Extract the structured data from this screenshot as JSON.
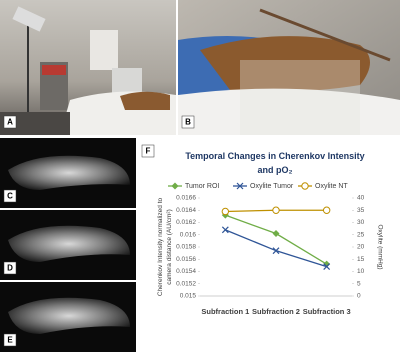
{
  "panels": [
    "A",
    "B",
    "C",
    "D",
    "E",
    "F"
  ],
  "chart_data": {
    "type": "line",
    "title": "Temporal Changes in Cherenkov Intensity and pO₂",
    "y_label": "Cherenkov Intensity normalized to camera distance (AU/cm²)",
    "y2_label": "Oxylite (mmHg)",
    "categories": [
      "Subfraction 1",
      "Subfraction 2",
      "Subfraction 3"
    ],
    "ylim": [
      0.015,
      0.0166
    ],
    "yticks": [
      0.015,
      0.0152,
      0.0154,
      0.0156,
      0.0158,
      0.016,
      0.0162,
      0.0164,
      0.0166
    ],
    "y2lim": [
      0,
      40
    ],
    "y2ticks": [
      0,
      5,
      10,
      15,
      20,
      25,
      30,
      35,
      40
    ],
    "series": [
      {
        "name": "Tumor ROI",
        "color": "#70ad47",
        "marker": "diamond",
        "values": [
          0.01632,
          0.01602,
          0.01552
        ]
      },
      {
        "name": "Oxylite Tumor",
        "color": "#2f5597",
        "marker": "x",
        "axis": "y2",
        "values": [
          27,
          18.5,
          12
        ]
      },
      {
        "name": "Oxylite NT",
        "color": "#bf9000",
        "marker": "circle",
        "axis": "y2",
        "values": [
          34.5,
          35,
          35
        ]
      }
    ]
  }
}
